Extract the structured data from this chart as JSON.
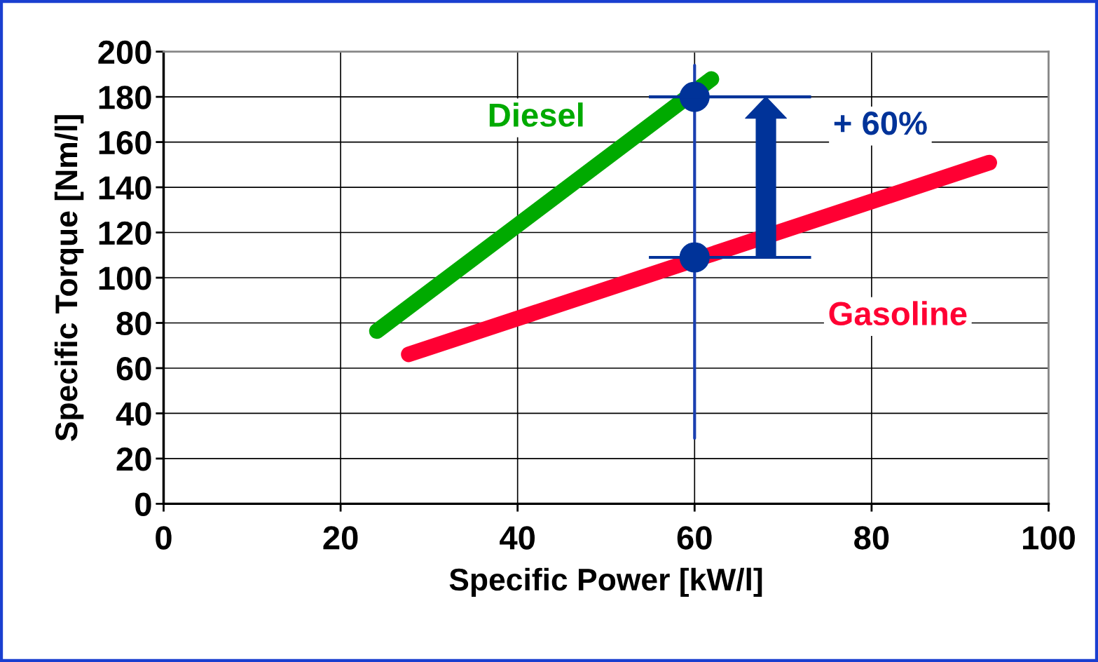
{
  "chart_data": {
    "type": "line",
    "xlabel": "Specific Power [kW/l]",
    "ylabel": "Specific Torque [Nm/l]",
    "xlim": [
      0,
      100
    ],
    "xticks": [
      0,
      20,
      40,
      60,
      80,
      100
    ],
    "ylim": [
      0,
      200
    ],
    "yticks": [
      0,
      20,
      40,
      60,
      80,
      100,
      120,
      140,
      160,
      180,
      200
    ],
    "grid": true,
    "legend": false,
    "series": [
      {
        "name": "Diesel",
        "color": "#00aa00",
        "x": [
          24.1,
          61.9
        ],
        "values": [
          76.4,
          187.9
        ]
      },
      {
        "name": "Gasoline",
        "color": "#ff0033",
        "x": [
          27.7,
          93.3
        ],
        "values": [
          66.1,
          150.9
        ]
      },
      {
        "type": "line",
        "color": "#1a3fb0",
        "x": [
          60,
          60
        ],
        "values": [
          29,
          194
        ]
      },
      {
        "type": "scatter",
        "color": "#003399",
        "marker": "circle",
        "x": [
          60,
          60
        ],
        "values": [
          180,
          109
        ],
        "xerrors": [
          [
            55,
            73
          ],
          [
            55,
            73
          ]
        ]
      }
    ],
    "annotations": [
      "+ 60%"
    ]
  }
}
